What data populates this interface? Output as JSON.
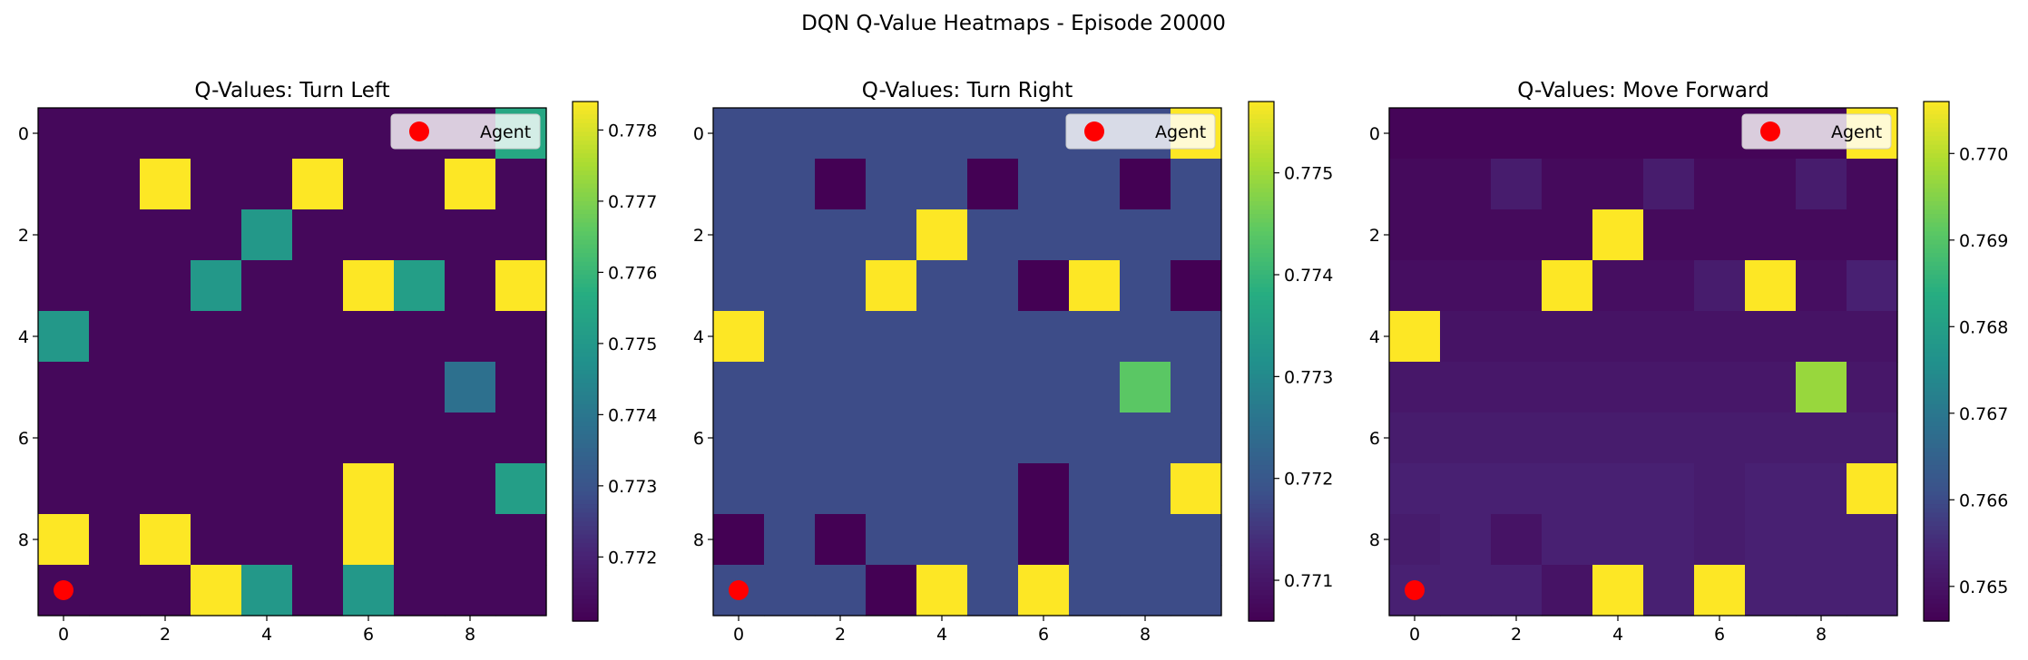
{
  "figure": {
    "title": "DQN Q-Value Heatmaps - Episode 20000"
  },
  "chart_data": [
    {
      "type": "heatmap",
      "title": "Q-Values: Turn Left",
      "colormap": "viridis",
      "x_ticks": [
        "0",
        "2",
        "4",
        "6",
        "8"
      ],
      "y_ticks": [
        "0",
        "2",
        "4",
        "6",
        "8"
      ],
      "vmin": 0.7711,
      "vmax": 0.7784,
      "colorbar_ticks": [
        0.772,
        0.773,
        0.774,
        0.775,
        0.776,
        0.777,
        0.778
      ],
      "grid": false,
      "legend": {
        "label": "Agent",
        "position": "top-right"
      },
      "agent": {
        "x": 0,
        "y": 9
      },
      "values": [
        [
          0.7713,
          0.7713,
          0.7713,
          0.7713,
          0.7713,
          0.7713,
          0.7713,
          0.7713,
          0.7713,
          0.7755
        ],
        [
          0.7713,
          0.7713,
          0.7784,
          0.7713,
          0.7713,
          0.7784,
          0.7713,
          0.7713,
          0.7784,
          0.7713
        ],
        [
          0.7713,
          0.7713,
          0.7713,
          0.7713,
          0.775,
          0.7713,
          0.7713,
          0.7713,
          0.7713,
          0.7713
        ],
        [
          0.7713,
          0.7713,
          0.7713,
          0.775,
          0.7713,
          0.7713,
          0.7784,
          0.7752,
          0.7713,
          0.7784
        ],
        [
          0.775,
          0.7713,
          0.7713,
          0.7713,
          0.7713,
          0.7713,
          0.7713,
          0.7713,
          0.7713,
          0.7713
        ],
        [
          0.7713,
          0.7713,
          0.7713,
          0.7713,
          0.7713,
          0.7713,
          0.7713,
          0.7713,
          0.7738,
          0.7713
        ],
        [
          0.7713,
          0.7713,
          0.7713,
          0.7713,
          0.7713,
          0.7713,
          0.7713,
          0.7713,
          0.7713,
          0.7713
        ],
        [
          0.7713,
          0.7713,
          0.7713,
          0.7713,
          0.7713,
          0.7713,
          0.7784,
          0.7713,
          0.7713,
          0.7752
        ],
        [
          0.7784,
          0.7713,
          0.7784,
          0.7713,
          0.7713,
          0.7713,
          0.7784,
          0.7713,
          0.7713,
          0.7713
        ],
        [
          0.7713,
          0.7713,
          0.7713,
          0.7784,
          0.775,
          0.7713,
          0.775,
          0.7713,
          0.7713,
          0.7713
        ]
      ]
    },
    {
      "type": "heatmap",
      "title": "Q-Values: Turn Right",
      "colormap": "viridis",
      "x_ticks": [
        "0",
        "2",
        "4",
        "6",
        "8"
      ],
      "y_ticks": [
        "0",
        "2",
        "4",
        "6",
        "8"
      ],
      "vmin": 0.7706,
      "vmax": 0.7757,
      "colorbar_ticks": [
        0.771,
        0.772,
        0.773,
        0.774,
        0.775
      ],
      "grid": false,
      "legend": {
        "label": "Agent",
        "position": "top-right"
      },
      "agent": {
        "x": 0,
        "y": 9
      },
      "values": [
        [
          0.7718,
          0.7718,
          0.7718,
          0.7718,
          0.7718,
          0.7718,
          0.7718,
          0.7718,
          0.7718,
          0.7757
        ],
        [
          0.7718,
          0.7718,
          0.7706,
          0.7718,
          0.7718,
          0.7706,
          0.7718,
          0.7718,
          0.7706,
          0.7718
        ],
        [
          0.7718,
          0.7718,
          0.7718,
          0.7718,
          0.7757,
          0.7718,
          0.7718,
          0.7718,
          0.7718,
          0.7718
        ],
        [
          0.7718,
          0.7718,
          0.7718,
          0.7757,
          0.7718,
          0.7718,
          0.7706,
          0.7757,
          0.7718,
          0.7706
        ],
        [
          0.7757,
          0.7718,
          0.7718,
          0.7718,
          0.7718,
          0.7718,
          0.7718,
          0.7718,
          0.7718,
          0.7718
        ],
        [
          0.7718,
          0.7718,
          0.7718,
          0.7718,
          0.7718,
          0.7718,
          0.7718,
          0.7718,
          0.7744,
          0.7718
        ],
        [
          0.7718,
          0.7718,
          0.7718,
          0.7718,
          0.7718,
          0.7718,
          0.7718,
          0.7718,
          0.7718,
          0.7718
        ],
        [
          0.7718,
          0.7718,
          0.7718,
          0.7718,
          0.7718,
          0.7718,
          0.7706,
          0.7718,
          0.7718,
          0.7757
        ],
        [
          0.7706,
          0.7718,
          0.7706,
          0.7718,
          0.7718,
          0.7718,
          0.7706,
          0.7718,
          0.7718,
          0.7718
        ],
        [
          0.7718,
          0.7718,
          0.7718,
          0.7706,
          0.7757,
          0.7718,
          0.7757,
          0.7718,
          0.7718,
          0.7718
        ]
      ]
    },
    {
      "type": "heatmap",
      "title": "Q-Values: Move Forward",
      "colormap": "viridis",
      "x_ticks": [
        "0",
        "2",
        "4",
        "6",
        "8"
      ],
      "y_ticks": [
        "0",
        "2",
        "4",
        "6",
        "8"
      ],
      "vmin": 0.7646,
      "vmax": 0.7706,
      "colorbar_ticks": [
        0.765,
        0.766,
        0.767,
        0.768,
        0.769,
        0.77
      ],
      "grid": false,
      "legend": {
        "label": "Agent",
        "position": "top-right"
      },
      "agent": {
        "x": 0,
        "y": 9
      },
      "values": [
        [
          0.7647,
          0.7647,
          0.7647,
          0.7647,
          0.7647,
          0.7647,
          0.7647,
          0.7647,
          0.7647,
          0.7706
        ],
        [
          0.7648,
          0.7648,
          0.7652,
          0.7648,
          0.7648,
          0.7652,
          0.7648,
          0.7648,
          0.7652,
          0.7648
        ],
        [
          0.7648,
          0.7648,
          0.7648,
          0.7648,
          0.7706,
          0.7648,
          0.7648,
          0.7648,
          0.7648,
          0.7648
        ],
        [
          0.7649,
          0.7649,
          0.7649,
          0.7706,
          0.7649,
          0.7649,
          0.7652,
          0.7706,
          0.7649,
          0.7653
        ],
        [
          0.7706,
          0.765,
          0.765,
          0.765,
          0.765,
          0.765,
          0.765,
          0.765,
          0.765,
          0.765
        ],
        [
          0.7651,
          0.7651,
          0.7651,
          0.7651,
          0.7651,
          0.7651,
          0.7651,
          0.7651,
          0.7697,
          0.7651
        ],
        [
          0.7652,
          0.7652,
          0.7652,
          0.7652,
          0.7652,
          0.7652,
          0.7652,
          0.7652,
          0.7652,
          0.7652
        ],
        [
          0.7653,
          0.7653,
          0.7653,
          0.7653,
          0.7653,
          0.7653,
          0.7652,
          0.7653,
          0.7653,
          0.7706
        ],
        [
          0.7652,
          0.7653,
          0.765,
          0.7653,
          0.7653,
          0.7653,
          0.7652,
          0.7653,
          0.7653,
          0.7653
        ],
        [
          0.7653,
          0.7653,
          0.7653,
          0.765,
          0.7706,
          0.7653,
          0.7706,
          0.7653,
          0.7653,
          0.7653
        ]
      ]
    }
  ]
}
